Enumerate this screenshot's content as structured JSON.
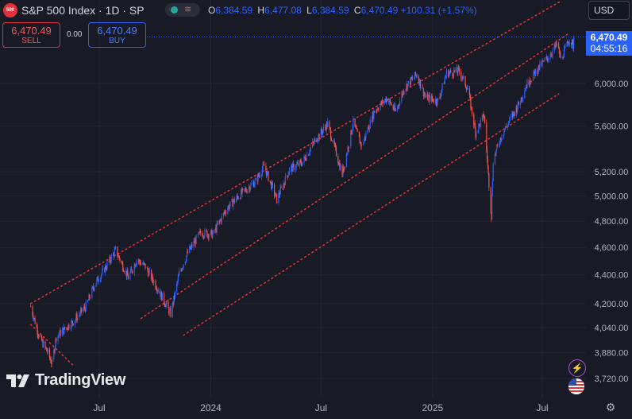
{
  "header": {
    "symbol_badge": "500",
    "title": "S&P 500 Index · 1D · SP",
    "ohlc": [
      {
        "key": "O",
        "value": "6,384.59"
      },
      {
        "key": "H",
        "value": "6,477.08"
      },
      {
        "key": "L",
        "value": "6,384.59"
      },
      {
        "key": "C",
        "value": "6,470.49 +100.31 (+1.57%)"
      }
    ],
    "currency": "USD"
  },
  "trade": {
    "sell_price": "6,470.49",
    "sell_label": "SELL",
    "spread": "0.00",
    "buy_price": "6,470.49",
    "buy_label": "BUY"
  },
  "price_tag": {
    "price": "6,470.49",
    "countdown": "04:55:16"
  },
  "branding": {
    "logo_text": "TradingView"
  },
  "icons": {
    "settings": "gear-icon",
    "flash": "flash-icon",
    "flag": "us-flag-icon"
  },
  "colors": {
    "up": "#2962ff",
    "down": "#ef5350",
    "channel": "#e0323a",
    "background": "#181a25"
  },
  "chart_data": {
    "type": "candlestick",
    "scale": "log",
    "y_ticks": [
      3720,
      3880,
      4040,
      4200,
      4400,
      4600,
      4800,
      5000,
      5200,
      5600,
      6000,
      6470.49
    ],
    "y_tick_labels": [
      "3,720.00",
      "3,880.00",
      "4,040.00",
      "4,200.00",
      "4,400.00",
      "4,600.00",
      "4,800.00",
      "5,000.00",
      "5,200.00",
      "5,600.00",
      "6,000.00",
      "6,470.49"
    ],
    "x_labels": [
      "Jul",
      "2024",
      "Jul",
      "2025",
      "Jul"
    ],
    "x_label_dates": [
      "2023-07-01",
      "2024-01-01",
      "2024-07-01",
      "2025-01-01",
      "2025-07-01"
    ],
    "last_close": 6470.49,
    "channels": [
      {
        "name": "upper-channel",
        "from": {
          "date": "2023-03-10",
          "value": 4200
        },
        "to": {
          "date": "2025-07-30",
          "value": 6850
        }
      },
      {
        "name": "middle-channel",
        "from": {
          "date": "2023-09-08",
          "value": 4100
        },
        "to": {
          "date": "2025-08-12",
          "value": 6500
        }
      },
      {
        "name": "lower-channel",
        "from": {
          "date": "2023-11-17",
          "value": 3990
        },
        "to": {
          "date": "2025-07-28",
          "value": 5900
        }
      },
      {
        "name": "short-down-line",
        "from": {
          "date": "2023-03-10",
          "value": 4060
        },
        "to": {
          "date": "2023-05-19",
          "value": 3800
        }
      }
    ],
    "path": [
      [
        "2023-03-10",
        4180
      ],
      [
        "2023-03-24",
        3980
      ],
      [
        "2023-04-07",
        3880
      ],
      [
        "2023-04-14",
        3810
      ],
      [
        "2023-04-21",
        3980
      ],
      [
        "2023-05-05",
        4030
      ],
      [
        "2023-05-19",
        4080
      ],
      [
        "2023-06-09",
        4180
      ],
      [
        "2023-06-23",
        4330
      ],
      [
        "2023-07-14",
        4470
      ],
      [
        "2023-07-28",
        4580
      ],
      [
        "2023-08-18",
        4380
      ],
      [
        "2023-09-01",
        4510
      ],
      [
        "2023-09-15",
        4460
      ],
      [
        "2023-10-06",
        4300
      ],
      [
        "2023-10-27",
        4130
      ],
      [
        "2023-11-10",
        4410
      ],
      [
        "2023-11-24",
        4560
      ],
      [
        "2023-12-15",
        4710
      ],
      [
        "2024-01-05",
        4700
      ],
      [
        "2024-01-26",
        4890
      ],
      [
        "2024-02-16",
        5000
      ],
      [
        "2024-03-15",
        5120
      ],
      [
        "2024-03-29",
        5250
      ],
      [
        "2024-04-19",
        4970
      ],
      [
        "2024-05-10",
        5220
      ],
      [
        "2024-05-31",
        5280
      ],
      [
        "2024-06-21",
        5470
      ],
      [
        "2024-07-12",
        5620
      ],
      [
        "2024-08-05",
        5180
      ],
      [
        "2024-08-23",
        5630
      ],
      [
        "2024-09-06",
        5420
      ],
      [
        "2024-09-27",
        5740
      ],
      [
        "2024-10-18",
        5860
      ],
      [
        "2024-11-01",
        5730
      ],
      [
        "2024-11-15",
        5950
      ],
      [
        "2024-12-06",
        6090
      ],
      [
        "2024-12-20",
        5870
      ],
      [
        "2025-01-10",
        5830
      ],
      [
        "2025-01-24",
        6100
      ],
      [
        "2025-02-14",
        6120
      ],
      [
        "2025-02-28",
        5950
      ],
      [
        "2025-03-13",
        5540
      ],
      [
        "2025-03-27",
        5700
      ],
      [
        "2025-04-04",
        5100
      ],
      [
        "2025-04-08",
        4840
      ],
      [
        "2025-04-11",
        5300
      ],
      [
        "2025-04-25",
        5520
      ],
      [
        "2025-05-09",
        5660
      ],
      [
        "2025-05-23",
        5800
      ],
      [
        "2025-06-06",
        6000
      ],
      [
        "2025-06-27",
        6170
      ],
      [
        "2025-07-11",
        6260
      ],
      [
        "2025-07-25",
        6390
      ],
      [
        "2025-08-01",
        6240
      ],
      [
        "2025-08-15",
        6450
      ],
      [
        "2025-08-21",
        6380
      ],
      [
        "2025-08-22",
        6470.49
      ]
    ]
  }
}
